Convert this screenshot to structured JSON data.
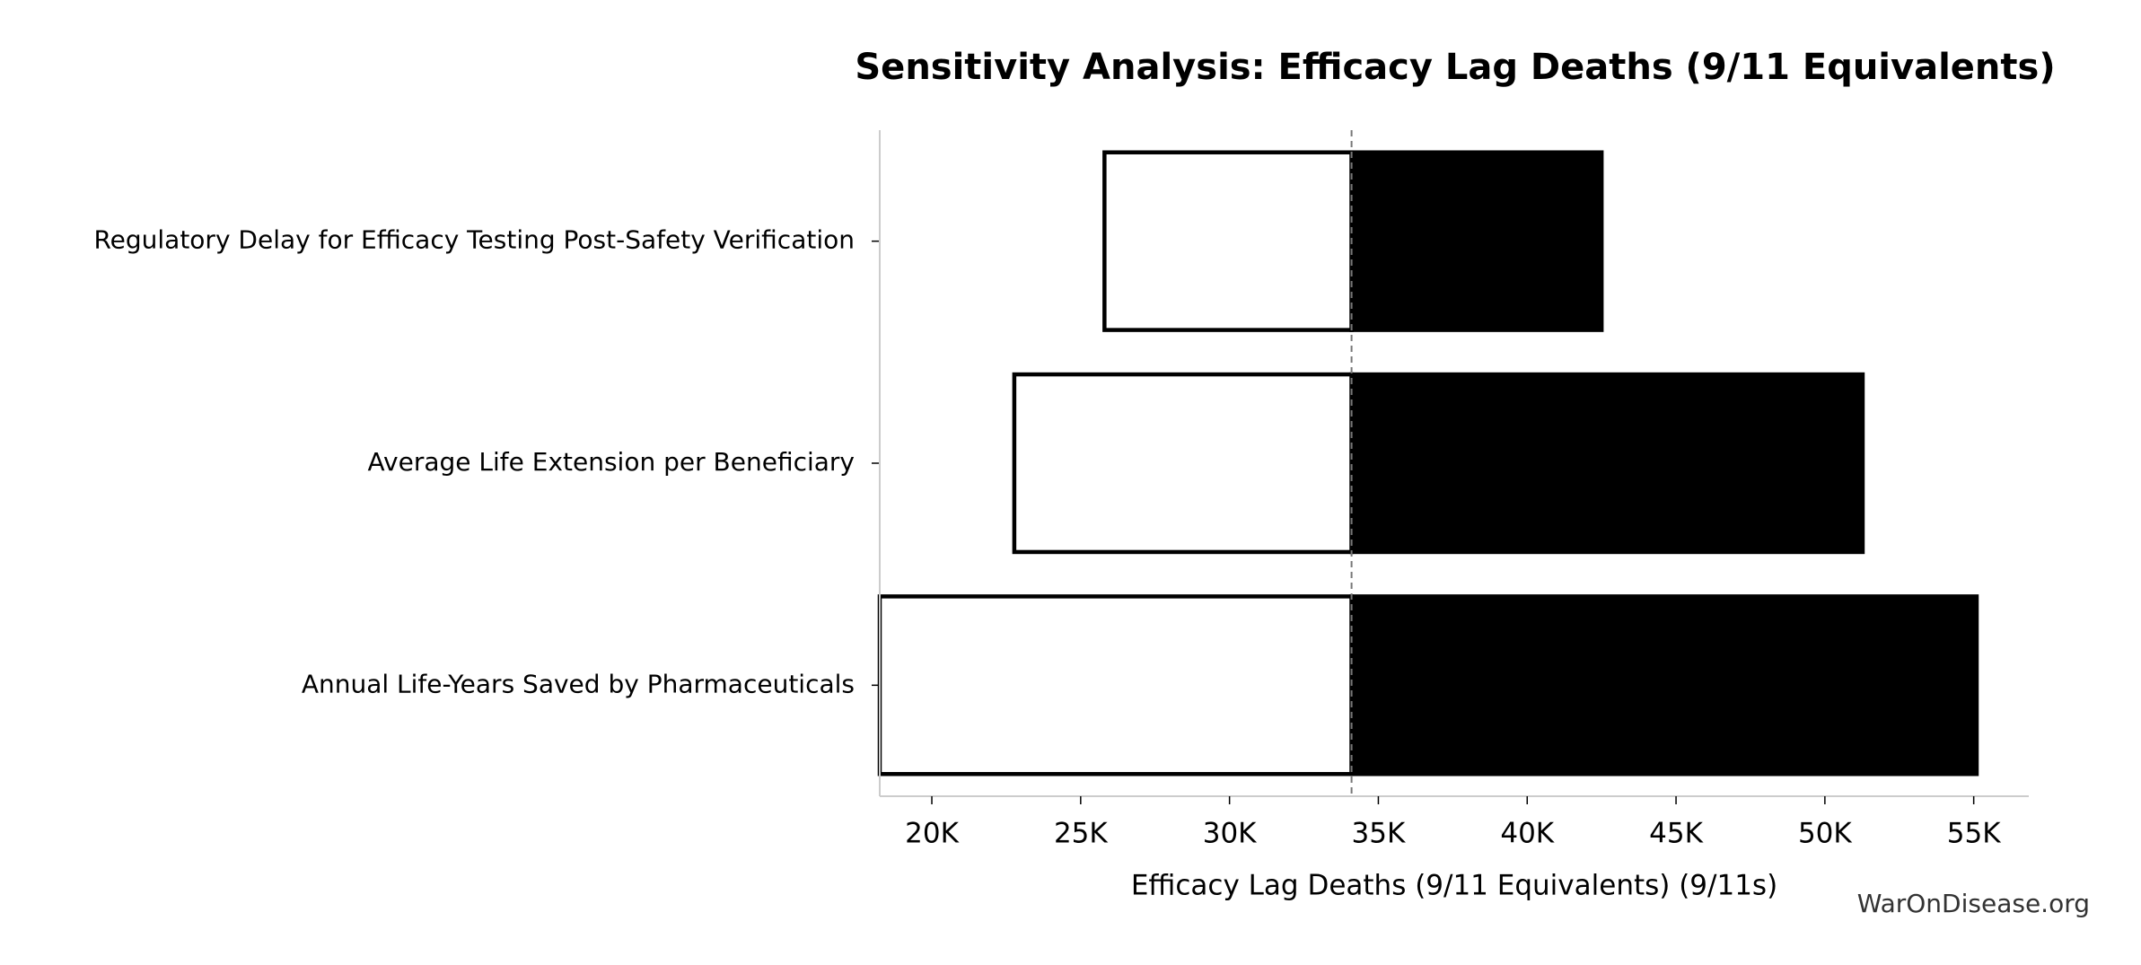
{
  "chart_data": {
    "type": "tornado",
    "title": "Sensitivity Analysis: Efficacy Lag Deaths (9/11 Equivalents)",
    "xlabel": "Efficacy Lag Deaths (9/11 Equivalents) (9/11s)",
    "watermark": "WarOnDisease.org",
    "categories": [
      "Regulatory Delay for Efficacy Testing Post-Safety Verification",
      "Average Life Extension per Beneficiary",
      "Annual Life-Years Saved by Pharmaceuticals"
    ],
    "baseline": 34100,
    "series": [
      {
        "color": "#ffffff",
        "edgecolor": "#000000",
        "values": [
          25800,
          22770,
          18250
        ]
      },
      {
        "color": "#000000",
        "edgecolor": "#000000",
        "values": [
          42500,
          51270,
          55100
        ]
      }
    ],
    "xlim": [
      18250,
      56850
    ],
    "xticks": [
      {
        "value": 20000,
        "label": "20K"
      },
      {
        "value": 25000,
        "label": "25K"
      },
      {
        "value": 30000,
        "label": "30K"
      },
      {
        "value": 35000,
        "label": "35K"
      },
      {
        "value": 40000,
        "label": "40K"
      },
      {
        "value": 45000,
        "label": "45K"
      },
      {
        "value": 50000,
        "label": "50K"
      },
      {
        "value": 55000,
        "label": "55K"
      }
    ]
  }
}
